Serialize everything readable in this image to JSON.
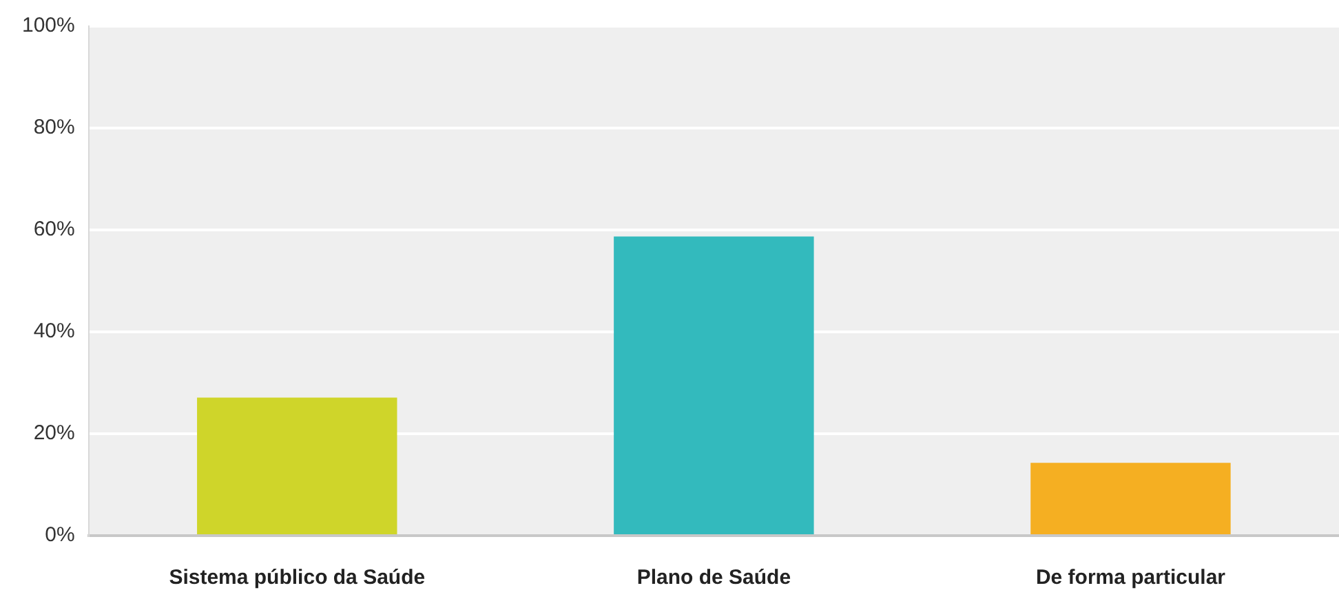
{
  "chart_data": {
    "type": "bar",
    "categories": [
      "Sistema público da Saúde",
      "Plano de Saúde",
      "De forma particular"
    ],
    "values": [
      27.1,
      58.7,
      14.3
    ],
    "colors": [
      "#cfd52a",
      "#33babd",
      "#f5af22"
    ],
    "ylim": [
      0,
      100
    ],
    "yticks": [
      {
        "value": 0,
        "label": "0%"
      },
      {
        "value": 20,
        "label": "20%"
      },
      {
        "value": 40,
        "label": "40%"
      },
      {
        "value": 60,
        "label": "60%"
      },
      {
        "value": 80,
        "label": "80%"
      },
      {
        "value": 100,
        "label": "100%"
      }
    ],
    "grid": "y",
    "legend": false
  }
}
